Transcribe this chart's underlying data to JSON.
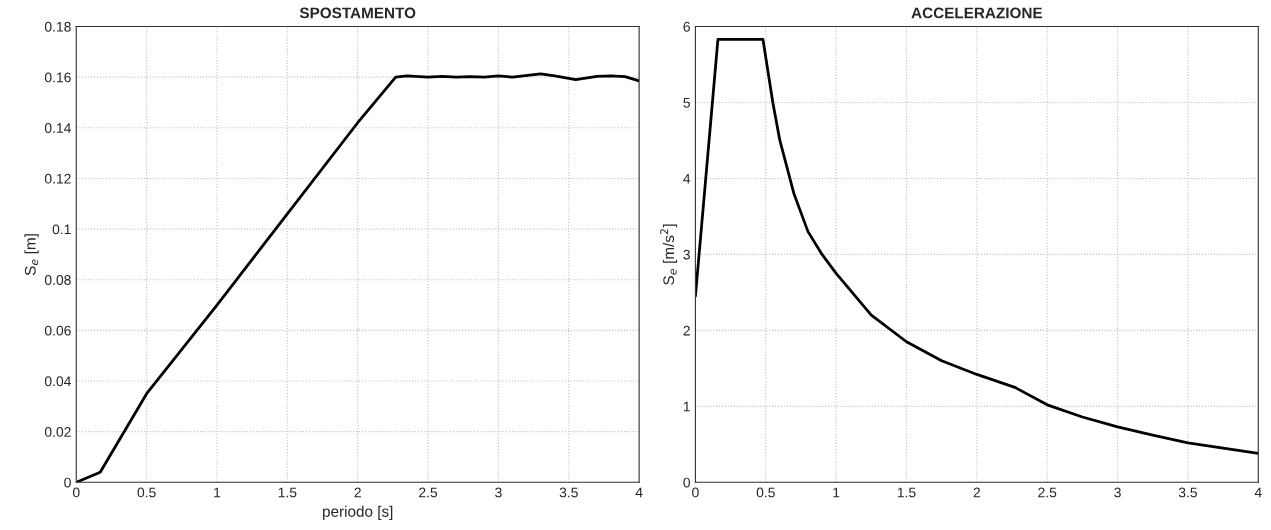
{
  "chart_data": [
    {
      "type": "line",
      "title": "SPOSTAMENTO",
      "xlabel": "periodo [s]",
      "ylabel": "S$_{e}$ [m]",
      "grid": true,
      "xlim": [
        0,
        4
      ],
      "xticks": [
        0,
        0.5,
        1,
        1.5,
        2,
        2.5,
        3,
        3.5,
        4
      ],
      "ylim": [
        0,
        0.18
      ],
      "yticks": [
        0,
        0.02,
        0.04,
        0.06,
        0.08,
        0.1,
        0.12,
        0.14,
        0.16,
        0.18
      ],
      "series": [
        {
          "color": "#000000",
          "x": [
            0,
            0.17,
            0.5,
            1,
            1.5,
            2,
            2.27,
            2.35,
            2.5,
            2.6,
            2.7,
            2.8,
            2.9,
            3,
            3.1,
            3.3,
            3.4,
            3.55,
            3.7,
            3.8,
            3.9,
            4
          ],
          "values": [
            0,
            0.004,
            0.035,
            0.07,
            0.106,
            0.142,
            0.16,
            0.1605,
            0.16,
            0.1603,
            0.16,
            0.1602,
            0.16,
            0.1605,
            0.16,
            0.1613,
            0.1605,
            0.159,
            0.1603,
            0.1605,
            0.1602,
            0.1585
          ]
        }
      ]
    },
    {
      "type": "line",
      "title": "ACCELERAZIONE",
      "ylabel": "S$_{e}$ [m/s$^{2}$]",
      "grid": true,
      "xlim": [
        0,
        4
      ],
      "xticks": [
        0,
        0.5,
        1,
        1.5,
        2,
        2.5,
        3,
        3.5,
        4
      ],
      "ylim": [
        0,
        6
      ],
      "yticks": [
        0,
        1,
        2,
        3,
        4,
        5,
        6
      ],
      "series": [
        {
          "color": "#000000",
          "x": [
            0,
            0.16,
            0.48,
            0.55,
            0.6,
            0.7,
            0.8,
            0.9,
            1,
            1.25,
            1.5,
            1.75,
            2,
            2.27,
            2.5,
            2.75,
            3,
            3.25,
            3.5,
            3.75,
            4
          ],
          "values": [
            2.45,
            5.83,
            5.83,
            5.0,
            4.5,
            3.8,
            3.3,
            3.0,
            2.75,
            2.2,
            1.85,
            1.6,
            1.42,
            1.25,
            1.02,
            0.86,
            0.73,
            0.62,
            0.52,
            0.45,
            0.38
          ]
        }
      ]
    }
  ]
}
